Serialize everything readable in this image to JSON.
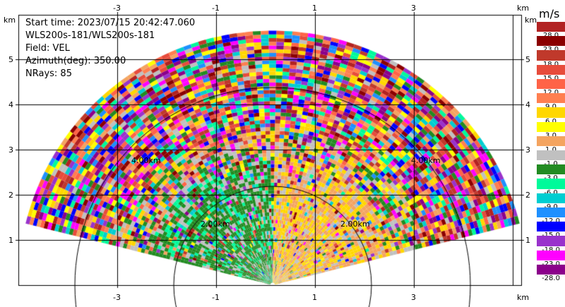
{
  "info": {
    "start_time": "Start time: 2023/07/15 20:42:47.060",
    "station": "WLS200s-181/WLS200s-181",
    "field": "Field: VEL",
    "azimuth": "Azimuth(deg): 350.00",
    "nrays": "NRays: 85"
  },
  "axes": {
    "x_unit": "km",
    "y_unit": "km",
    "x_ticks": [
      "-3",
      "-1",
      "1",
      "3"
    ],
    "y_ticks": [
      "5",
      "4",
      "3",
      "2",
      "1"
    ]
  },
  "range_rings": {
    "inner": "2.00km",
    "outer": "4.00km"
  },
  "colorbar": {
    "unit": "m/s",
    "labels": [
      "28.0",
      "23.0",
      "18.0",
      "15.0",
      "12.0",
      "9.0",
      "6.0",
      "3.0",
      "1.0",
      "-1.0",
      "-3.0",
      "-6.0",
      "-9.0",
      "-12.0",
      "-15.0",
      "-18.0",
      "-23.0",
      "-28.0"
    ],
    "colors": [
      "#b22222",
      "#8b0000",
      "#c0392b",
      "#e74c3c",
      "#ff6347",
      "#ff7f50",
      "#ffd700",
      "#ffff00",
      "#f4a460",
      "#c0c0c0",
      "#228b22",
      "#00fa9a",
      "#00ced1",
      "#1e90ff",
      "#0000ff",
      "#9932cc",
      "#ff00ff",
      "#8b008b"
    ]
  }
}
